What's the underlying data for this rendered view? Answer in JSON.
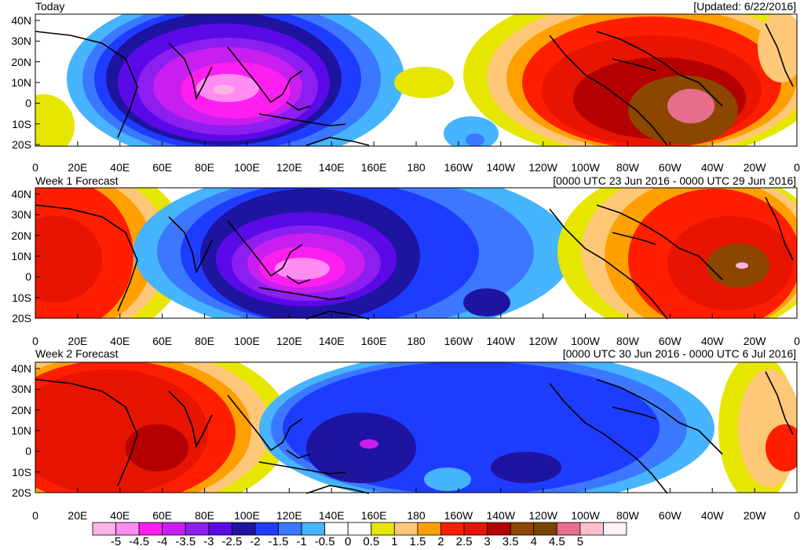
{
  "panels": [
    {
      "title_left": "Today",
      "title_right": "[Updated: 6/22/2016]"
    },
    {
      "title_left": "Week 1 Forecast",
      "title_right": "[0000 UTC 23 Jun 2016 - 0000 UTC 29 Jun 2016]"
    },
    {
      "title_left": "Week 2 Forecast",
      "title_right": "[0000 UTC 30 Jun 2016 - 0000 UTC 6 Jul 2016]"
    }
  ],
  "lat_labels": [
    "40N",
    "30N",
    "20N",
    "10N",
    "0",
    "10S",
    "20S"
  ],
  "lon_labels": [
    "0",
    "20E",
    "40E",
    "60E",
    "80E",
    "100E",
    "120E",
    "140E",
    "160E",
    "180",
    "160W",
    "140W",
    "120W",
    "100W",
    "80W",
    "60W",
    "40W",
    "20W",
    "0"
  ],
  "colorbar": {
    "labels": [
      "-5",
      "-4.5",
      "-4",
      "-3.5",
      "-3",
      "-2.5",
      "-2",
      "-1.5",
      "-1",
      "-0.5",
      "0",
      "0.5",
      "1",
      "1.5",
      "2",
      "2.5",
      "3",
      "3.5",
      "4",
      "4.5",
      "5"
    ],
    "colors": [
      "#ffb4e6",
      "#ff8cf0",
      "#ff1ef0",
      "#c81ef0",
      "#8c1ef0",
      "#5a0ae6",
      "#1e14a0",
      "#1e3cff",
      "#3c78ff",
      "#46b4ff",
      "#ffffff",
      "#ffffff",
      "#e6e600",
      "#ffc878",
      "#ffa000",
      "#ff1e00",
      "#e61400",
      "#b40000",
      "#8c4600",
      "#784600",
      "#e66e8c",
      "#ffbec8",
      "#fff0f5"
    ]
  }
}
